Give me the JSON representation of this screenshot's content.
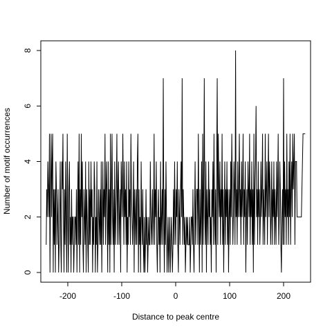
{
  "chart_data": {
    "type": "line",
    "title": "",
    "xlabel": "Distance to peak centre",
    "ylabel": "Number of motif occurrences",
    "xlim": [
      -250,
      250
    ],
    "ylim": [
      0,
      8
    ],
    "x_ticks": [
      -200,
      -100,
      0,
      100,
      200
    ],
    "x_tick_labels": [
      "-200",
      "-100",
      "0",
      "100",
      "200"
    ],
    "y_ticks": [
      0,
      2,
      4,
      6,
      8
    ],
    "y_tick_labels": [
      "0",
      "2",
      "4",
      "6",
      "8"
    ],
    "grid": false,
    "legend": "none",
    "colors": {
      "line": "#000000",
      "axis": "#000000",
      "background": "#ffffff"
    },
    "series": [
      {
        "x": [
          -240,
          -239,
          -238,
          -237,
          -236,
          -235,
          -234,
          -233,
          -232,
          -231,
          -230,
          -229,
          -228,
          -227,
          -226,
          -225,
          -224,
          -223,
          -222,
          -221,
          -220,
          -219,
          -218,
          -217,
          -216,
          -215,
          -214,
          -213,
          -212,
          -211,
          -210,
          -209,
          -208,
          -207,
          -206,
          -205,
          -204,
          -203,
          -202,
          -201,
          -200,
          -199,
          -198,
          -197,
          -196,
          -195,
          -194,
          -193,
          -192,
          -191,
          -190,
          -189,
          -188,
          -187,
          -186,
          -185,
          -184,
          -183,
          -182,
          -181,
          -180,
          -179,
          -178,
          -177,
          -176,
          -175,
          -174,
          -173,
          -172,
          -171,
          -170,
          -169,
          -168,
          -167,
          -166,
          -165,
          -164,
          -163,
          -162,
          -161,
          -160,
          -159,
          -158,
          -157,
          -156,
          -155,
          -154,
          -153,
          -152,
          -151,
          -150,
          -149,
          -148,
          -147,
          -146,
          -145,
          -144,
          -143,
          -142,
          -141,
          -140,
          -139,
          -138,
          -137,
          -136,
          -135,
          -134,
          -133,
          -132,
          -131,
          -130,
          -129,
          -128,
          -127,
          -126,
          -125,
          -124,
          -123,
          -122,
          -121,
          -120,
          -119,
          -118,
          -117,
          -116,
          -115,
          -114,
          -113,
          -112,
          -111,
          -110,
          -109,
          -108,
          -107,
          -106,
          -105,
          -104,
          -103,
          -102,
          -101,
          -100,
          -99,
          -98,
          -97,
          -96,
          -95,
          -94,
          -93,
          -92,
          -91,
          -90,
          -89,
          -88,
          -87,
          -86,
          -85,
          -84,
          -83,
          -82,
          -81,
          -80,
          -79,
          -78,
          -77,
          -76,
          -75,
          -74,
          -73,
          -72,
          -71,
          -70,
          -69,
          -68,
          -67,
          -66,
          -65,
          -64,
          -63,
          -62,
          -61,
          -60,
          -59,
          -58,
          -57,
          -56,
          -55,
          -54,
          -53,
          -52,
          -51,
          -50,
          -49,
          -48,
          -47,
          -46,
          -45,
          -44,
          -43,
          -42,
          -41,
          -40,
          -39,
          -38,
          -37,
          -36,
          -35,
          -34,
          -33,
          -32,
          -31,
          -30,
          -29,
          -28,
          -27,
          -26,
          -25,
          -24,
          -23,
          -22,
          -21,
          -20,
          -19,
          -18,
          -17,
          -16,
          -15,
          -14,
          -13,
          -12,
          -11,
          -10,
          -9,
          -8,
          -7,
          -6,
          -5,
          -4,
          -3,
          -2,
          -1,
          0,
          1,
          2,
          3,
          4,
          5,
          6,
          7,
          8,
          9,
          10,
          11,
          12,
          13,
          14,
          15,
          16,
          17,
          18,
          19,
          20,
          21,
          22,
          23,
          24,
          25,
          26,
          27,
          28,
          29,
          30,
          31,
          32,
          33,
          34,
          35,
          36,
          37,
          38,
          39,
          40,
          41,
          42,
          43,
          44,
          45,
          46,
          47,
          48,
          49,
          50,
          51,
          52,
          53,
          54,
          55,
          56,
          57,
          58,
          59,
          60,
          61,
          62,
          63,
          64,
          65,
          66,
          67,
          68,
          69,
          70,
          71,
          72,
          73,
          74,
          75,
          76,
          77,
          78,
          79,
          80,
          81,
          82,
          83,
          84,
          85,
          86,
          87,
          88,
          89,
          90,
          91,
          92,
          93,
          94,
          95,
          96,
          97,
          98,
          99,
          100,
          101,
          102,
          103,
          104,
          105,
          106,
          107,
          108,
          109,
          110,
          111,
          112,
          113,
          114,
          115,
          116,
          117,
          118,
          119,
          120,
          121,
          122,
          123,
          124,
          125,
          126,
          127,
          128,
          129,
          130,
          131,
          132,
          133,
          134,
          135,
          136,
          137,
          138,
          139,
          140,
          141,
          142,
          143,
          144,
          145,
          146,
          147,
          148,
          149,
          150,
          151,
          152,
          153,
          154,
          155,
          156,
          157,
          158,
          159,
          160,
          161,
          162,
          163,
          164,
          165,
          166,
          167,
          168,
          169,
          170,
          171,
          172,
          173,
          174,
          175,
          176,
          177,
          178,
          179,
          180,
          181,
          182,
          183,
          184,
          185,
          186,
          187,
          188,
          189,
          190,
          191,
          192,
          193,
          194,
          195,
          196,
          197,
          198,
          199,
          200,
          201,
          202,
          203,
          204,
          205,
          206,
          207,
          208,
          209,
          210,
          211,
          212,
          213,
          214,
          215,
          216,
          217,
          218,
          219,
          220,
          221,
          222,
          223,
          224,
          225,
          226,
          227,
          228,
          229,
          230,
          231,
          232,
          233,
          234,
          235,
          236,
          237,
          238,
          239,
          240
        ],
        "y": [
          1,
          3,
          2,
          4,
          3,
          2,
          5,
          0,
          3,
          5,
          2,
          4,
          5,
          0,
          3,
          1,
          3,
          0,
          4,
          3,
          1,
          2,
          3,
          0,
          1,
          2,
          4,
          1,
          0,
          4,
          3,
          5,
          2,
          0,
          3,
          1,
          4,
          2,
          0,
          5,
          2,
          0,
          3,
          4,
          1,
          2,
          0,
          3,
          1,
          2,
          2,
          0,
          1,
          2,
          2,
          1,
          3,
          0,
          2,
          4,
          1,
          5,
          0,
          3,
          1,
          5,
          2,
          4,
          1,
          0,
          3,
          2,
          1,
          4,
          0,
          3,
          2,
          1,
          0,
          4,
          1,
          3,
          1,
          4,
          2,
          3,
          0,
          2,
          1,
          4,
          3,
          0,
          2,
          1,
          4,
          0,
          1,
          3,
          2,
          1,
          3,
          1,
          4,
          0,
          2,
          4,
          1,
          3,
          2,
          5,
          1,
          3,
          4,
          2,
          0,
          4,
          1,
          3,
          0,
          5,
          1,
          3,
          5,
          2,
          1,
          3,
          0,
          4,
          1,
          2,
          3,
          5,
          1,
          3,
          4,
          1,
          2,
          3,
          0,
          4,
          3,
          2,
          5,
          3,
          1,
          4,
          2,
          3,
          1,
          4,
          0,
          2,
          1,
          4,
          2,
          3,
          1,
          5,
          3,
          2,
          1,
          2,
          4,
          0,
          3,
          2,
          1,
          3,
          1,
          4,
          5,
          0,
          3,
          1,
          2,
          0,
          4,
          2,
          1,
          3,
          1,
          0,
          2,
          0,
          1,
          3,
          1,
          2,
          0,
          1,
          2,
          1,
          1,
          4,
          2,
          1,
          2,
          3,
          1,
          2,
          5,
          1,
          3,
          2,
          4,
          1,
          0,
          2,
          3,
          1,
          2,
          0,
          4,
          1,
          2,
          3,
          1,
          7,
          2,
          0,
          3,
          1,
          4,
          2,
          0,
          1,
          2,
          0,
          1,
          2,
          0,
          1,
          2,
          1,
          0,
          1,
          3,
          1,
          4,
          2,
          1,
          3,
          2,
          4,
          1,
          0,
          3,
          2,
          1,
          3,
          4,
          2,
          7,
          1,
          3,
          2,
          1,
          2,
          0,
          1,
          2,
          1,
          2,
          1,
          1,
          1,
          2,
          0,
          1,
          2,
          2,
          1,
          3,
          1,
          0,
          2,
          4,
          1,
          2,
          3,
          3,
          1,
          5,
          2,
          0,
          3,
          1,
          2,
          4,
          0,
          5,
          1,
          3,
          7,
          2,
          1,
          4,
          0,
          3,
          2,
          1,
          4,
          2,
          3,
          1,
          2,
          0,
          3,
          2,
          4,
          1,
          5,
          2,
          1,
          3,
          0,
          4,
          7,
          1,
          5,
          3,
          2,
          4,
          1,
          3,
          2,
          5,
          1,
          3,
          0,
          2,
          4,
          1,
          3,
          2,
          4,
          1,
          3,
          0,
          2,
          3,
          1,
          4,
          2,
          5,
          3,
          1,
          2,
          4,
          3,
          1,
          8,
          2,
          3,
          1,
          4,
          2,
          3,
          5,
          2,
          3,
          1,
          4,
          2,
          3,
          5,
          1,
          3,
          2,
          4,
          0,
          2,
          3,
          1,
          4,
          3,
          2,
          5,
          1,
          3,
          2,
          4,
          1,
          3,
          0,
          5,
          1,
          3,
          4,
          6,
          2,
          3,
          1,
          4,
          2,
          3,
          1,
          2,
          4,
          2,
          3,
          5,
          1,
          3,
          2,
          1,
          5,
          2,
          3,
          4,
          1,
          3,
          5,
          2,
          4,
          3,
          1,
          2,
          4,
          1,
          3,
          2,
          4,
          1,
          3,
          2,
          1,
          4,
          2,
          3,
          5,
          1,
          2,
          4,
          3,
          1,
          0,
          2,
          3,
          1,
          7,
          1,
          4,
          2,
          3,
          1,
          5,
          2,
          3,
          1,
          4,
          2,
          5,
          1,
          3,
          4,
          2,
          5,
          3,
          4,
          5,
          1,
          4,
          4,
          4,
          2,
          2,
          2,
          2,
          2,
          2,
          2,
          2,
          2,
          3,
          4,
          5,
          5,
          5,
          5,
          5
        ]
      }
    ]
  }
}
